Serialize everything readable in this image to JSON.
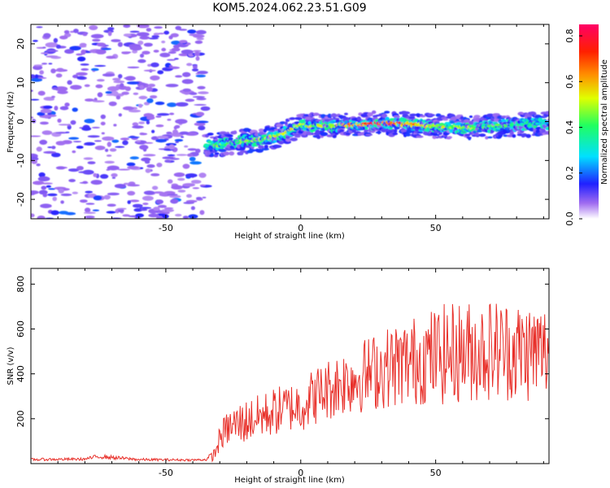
{
  "figure": {
    "title": "KOM5.2024.062.23.51.G09"
  },
  "chart_data": [
    {
      "type": "heatmap",
      "xlabel": "Height of straight line (km)",
      "ylabel": "Frequency (Hz)",
      "xlim": [
        -100,
        92
      ],
      "ylim": [
        -25,
        25
      ],
      "xticks": [
        -50,
        0,
        50
      ],
      "yticks": [
        -20,
        -10,
        0,
        10,
        20
      ],
      "grid": false,
      "colorbar": {
        "label": "Normalized spectral amplitude",
        "range": [
          0,
          0.85
        ],
        "ticks": [
          0.0,
          0.2,
          0.4,
          0.6,
          0.8
        ],
        "tick_labels": [
          "0.0",
          "0.2",
          "0.4",
          "0.6",
          "0.8"
        ],
        "colormap": "rainbow",
        "low_color": "#ffffff",
        "high_color": "#ff0066"
      },
      "noise_region_x": [
        -100,
        -35
      ],
      "signal_trace": {
        "x": [
          -35,
          -30,
          -25,
          -20,
          -15,
          -10,
          -5,
          0,
          5,
          10,
          15,
          20,
          25,
          30,
          35,
          40,
          45,
          50,
          55,
          60,
          65,
          70,
          75,
          80,
          85,
          92
        ],
        "frequency": [
          -6,
          -6,
          -5.5,
          -5,
          -4.5,
          -4,
          -2.5,
          -1,
          -1,
          -1.2,
          -1,
          -0.8,
          -0.6,
          -0.5,
          -0.5,
          -0.7,
          -1,
          -1.2,
          -1.3,
          -1.6,
          -1.4,
          -1.2,
          -1,
          -0.8,
          -0.7,
          -0.5
        ],
        "amplitude": [
          0.35,
          0.45,
          0.45,
          0.5,
          0.5,
          0.55,
          0.6,
          0.5,
          0.55,
          0.5,
          0.6,
          0.65,
          0.75,
          0.8,
          0.75,
          0.65,
          0.55,
          0.55,
          0.5,
          0.5,
          0.5,
          0.45,
          0.45,
          0.4,
          0.35,
          0.3
        ]
      }
    },
    {
      "type": "line",
      "xlabel": "Height of straight line (km)",
      "ylabel": "SNR (v/v)",
      "xlim": [
        -100,
        92
      ],
      "ylim": [
        0,
        870
      ],
      "xticks": [
        -50,
        0,
        50
      ],
      "yticks": [
        200,
        400,
        600,
        800
      ],
      "grid": false,
      "series": [
        {
          "color": "#e8302a",
          "x": [
            -100,
            -80,
            -75,
            -60,
            -40,
            -35,
            -32,
            -30,
            -28,
            -25,
            -22,
            -20,
            -15,
            -10,
            -5,
            0,
            5,
            10,
            15,
            20,
            25,
            30,
            35,
            40,
            45,
            50,
            55,
            60,
            65,
            70,
            75,
            80,
            85,
            92
          ],
          "y_base": [
            18,
            20,
            32,
            18,
            16,
            18,
            40,
            110,
            150,
            170,
            180,
            190,
            210,
            230,
            250,
            260,
            300,
            330,
            360,
            380,
            400,
            420,
            440,
            450,
            470,
            480,
            490,
            500,
            500,
            510,
            510,
            500,
            500,
            500
          ],
          "y_noise": [
            6,
            6,
            10,
            6,
            5,
            6,
            30,
            60,
            70,
            90,
            100,
            100,
            100,
            110,
            110,
            120,
            130,
            140,
            150,
            160,
            170,
            180,
            190,
            200,
            210,
            220,
            230,
            230,
            230,
            230,
            230,
            230,
            230,
            220
          ]
        }
      ]
    }
  ]
}
